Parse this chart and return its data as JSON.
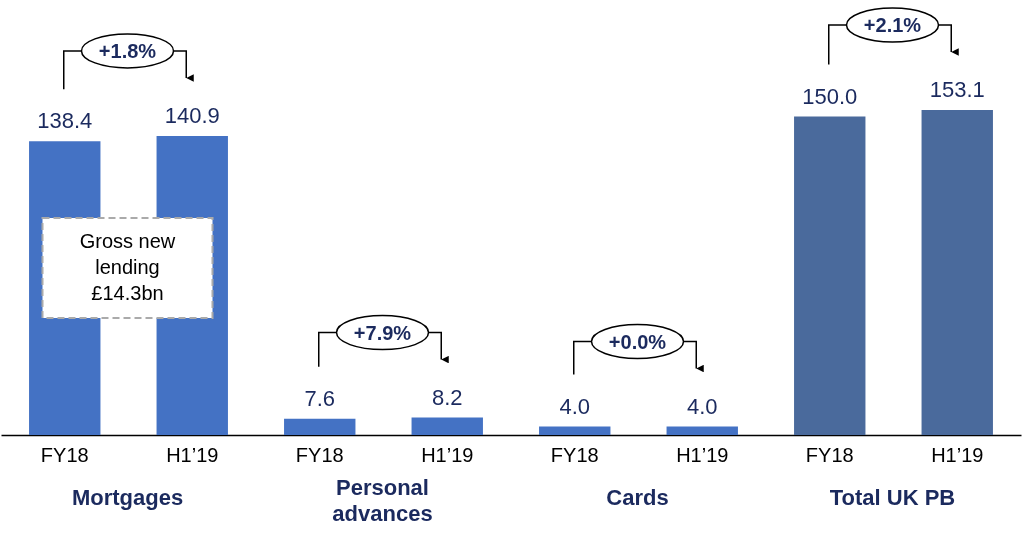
{
  "chart_data": {
    "type": "bar",
    "categories": [
      "FY18",
      "H1’19",
      "FY18",
      "H1’19",
      "FY18",
      "H1’19",
      "FY18",
      "H1’19"
    ],
    "values": [
      138.4,
      140.9,
      7.6,
      8.2,
      4.0,
      4.0,
      150.0,
      153.1
    ],
    "colors": [
      "#4472c4",
      "#4472c4",
      "#4472c4",
      "#4472c4",
      "#4472c4",
      "#4472c4",
      "#4a6a9c",
      "#4a6a9c"
    ],
    "value_labels": [
      "138.4",
      "140.9",
      "7.6",
      "8.2",
      "4.0",
      "4.0",
      "150.0",
      "153.1"
    ],
    "tick_labels": "x",
    "annotations": [
      "+1.8%",
      "+7.9%",
      "+0.0%",
      "+2.1%",
      "Mortgages",
      "Personal advances",
      "Cards",
      "Total UK PB",
      "Gross new lending £14.3bn"
    ]
  }
}
